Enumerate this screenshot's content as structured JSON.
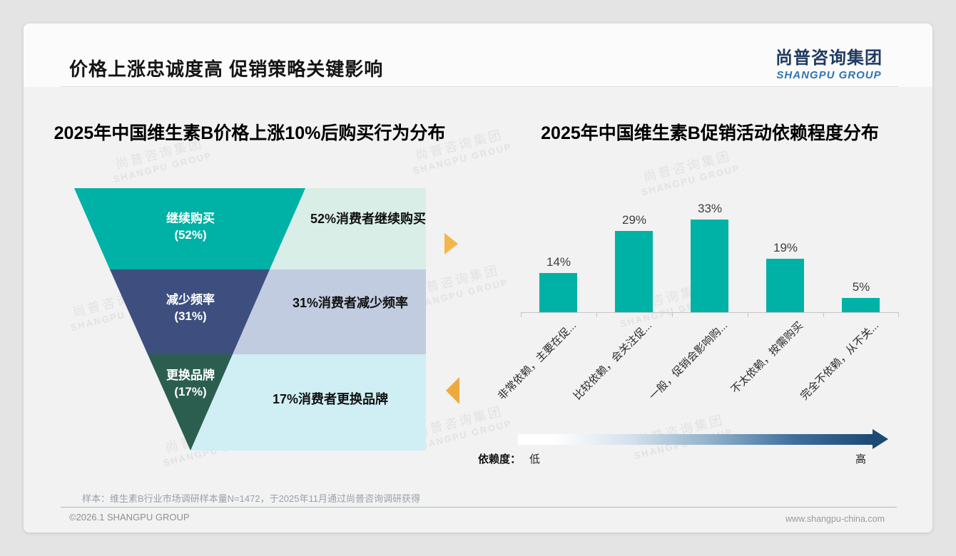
{
  "page": {
    "outer_bg": "#e4e4e4",
    "card_bg": "#fbfbfb",
    "content_bg": "#f1f2f1"
  },
  "header": {
    "title": "价格上涨忠诚度高 促销策略关键影响",
    "logo_cn": "尚普咨询集团",
    "logo_en": "SHANGPU GROUP",
    "logo_cn_color": "#1e3a5f",
    "logo_en_color": "#2e74b5"
  },
  "watermark": {
    "line1": "尚普咨询集团",
    "line2": "SHANGPU GROUP"
  },
  "chart_data": [
    {
      "type": "funnel",
      "title": "2025年中国维生素B价格上涨10%后购买行为分布",
      "categories": [
        "继续购买",
        "减少频率",
        "更换品牌"
      ],
      "values": [
        52,
        31,
        17
      ],
      "stages": [
        {
          "name": "继续购买",
          "value_label": "(52%)",
          "annotation": "52%消费者继续购买",
          "color": "#00b1a5",
          "annotation_bg": "#daeee8"
        },
        {
          "name": "减少频率",
          "value_label": "(31%)",
          "annotation": "31%消费者减少频率",
          "color": "#3e4f7f",
          "annotation_bg": "#c2cce1"
        },
        {
          "name": "更换品牌",
          "value_label": "(17%)",
          "annotation": "17%消费者更换品牌",
          "color": "#2c5e50",
          "annotation_bg": "#cfeff4"
        }
      ],
      "arrow_colors": [
        "#f4b64a",
        "#efaa3e"
      ],
      "legend_position": "none"
    },
    {
      "type": "bar",
      "title": "2025年中国维生素B促销活动依赖程度分布",
      "categories": [
        "非常依赖，主要在促...",
        "比较依赖，会关注促...",
        "一般，促销会影响购...",
        "不太依赖，按需购买",
        "完全不依赖，从不关..."
      ],
      "values": [
        14,
        29,
        33,
        19,
        5
      ],
      "value_labels": [
        "14%",
        "29%",
        "33%",
        "19%",
        "5%"
      ],
      "bar_color": "#00b1a5",
      "ylim": [
        0,
        35
      ],
      "grid": false,
      "legend_position": "none",
      "dependency_scale": {
        "label": "依赖度：",
        "low": "低",
        "high": "高",
        "gradient_from": "#ffffff",
        "gradient_to": "#1c4a74"
      }
    }
  ],
  "footer": {
    "note": "样本：维生素B行业市场调研样本量N=1472，于2025年11月通过尚普咨询调研获得",
    "copyright": "©2026.1 SHANGPU GROUP",
    "website": "www.shangpu-china.com"
  }
}
